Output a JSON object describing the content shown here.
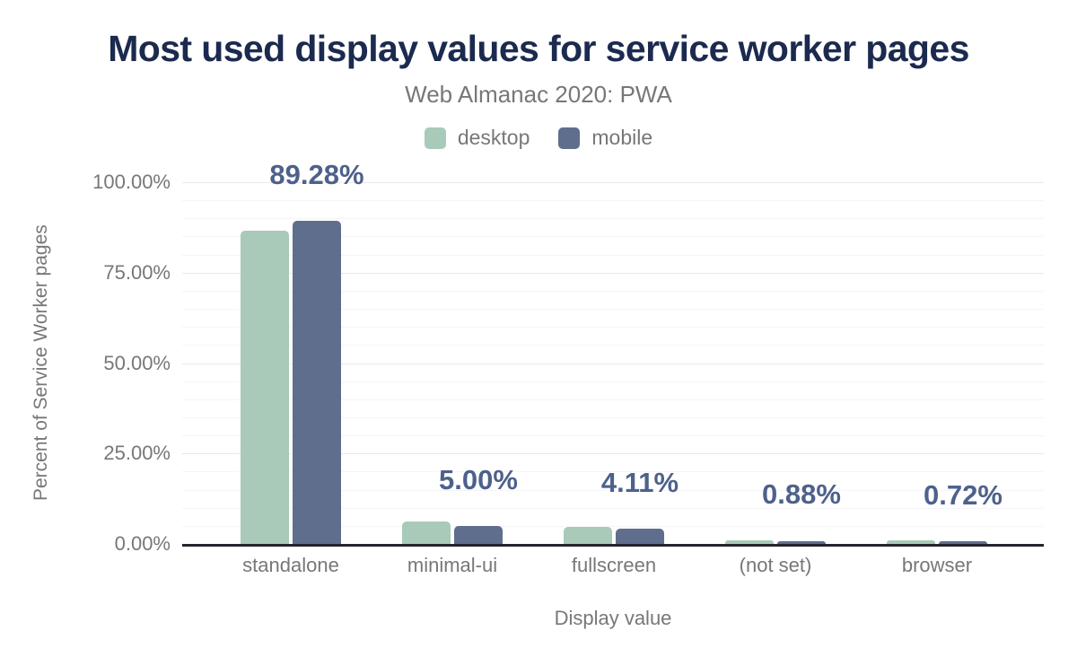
{
  "chart_data": {
    "type": "bar",
    "title": "Most used display values for service worker pages",
    "subtitle": "Web Almanac 2020: PWA",
    "xlabel": "Display value",
    "ylabel": "Percent of Service Worker pages",
    "categories": [
      "standalone",
      "minimal-ui",
      "fullscreen",
      "(not set)",
      "browser"
    ],
    "series": [
      {
        "name": "desktop",
        "color": "#a9cab8",
        "values": [
          86.6,
          6.2,
          4.7,
          1.1,
          1.0
        ]
      },
      {
        "name": "mobile",
        "color": "#5f6e8c",
        "values": [
          89.28,
          5.0,
          4.11,
          0.88,
          0.72
        ]
      }
    ],
    "data_labels": {
      "labeled_series": "mobile",
      "texts": [
        "89.28%",
        "5.00%",
        "4.11%",
        "0.88%",
        "0.72%"
      ]
    },
    "y_axis": {
      "min": 0,
      "max": 100,
      "major_tick_labels": [
        "0.00%",
        "25.00%",
        "50.00%",
        "75.00%",
        "100.00%"
      ],
      "major_interval": 25,
      "minor_interval": 5,
      "grid": true
    },
    "legend_position": "top"
  },
  "colors": {
    "title": "#1b2a4e",
    "gray_text": "#77777a",
    "desktop_bar": "#a9cab8",
    "mobile_bar": "#5f6e8c",
    "data_label": "#4e618c",
    "axis_line": "#22252b",
    "grid_major": "#e9e9eb",
    "grid_minor": "#f5f5f7",
    "background": "#ffffff"
  }
}
